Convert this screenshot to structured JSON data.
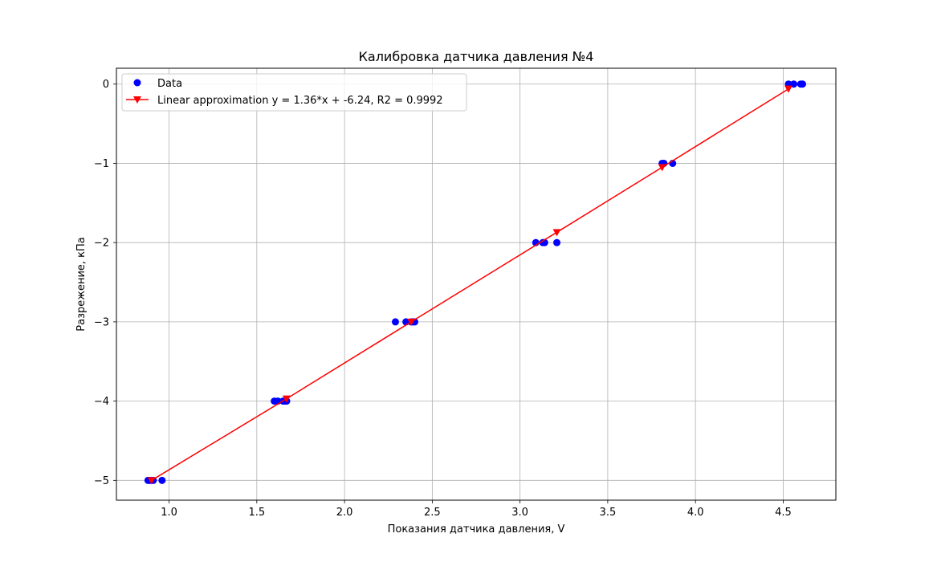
{
  "chart_data": {
    "type": "scatter",
    "title": "Калибровка датчика давления №4",
    "xlabel": "Показания датчика давления, V",
    "ylabel": "Разрежение, кПа",
    "xlim": [
      0.7,
      4.8
    ],
    "ylim": [
      -5.25,
      0.2
    ],
    "xticks": [
      1.0,
      1.5,
      2.0,
      2.5,
      3.0,
      3.5,
      4.0,
      4.5
    ],
    "xtick_labels": [
      "1.0",
      "1.5",
      "2.0",
      "2.5",
      "3.0",
      "3.5",
      "4.0",
      "4.5"
    ],
    "yticks": [
      0,
      -1,
      -2,
      -3,
      -4,
      -5
    ],
    "ytick_labels": [
      "0",
      "−1",
      "−2",
      "−3",
      "−4",
      "−5"
    ],
    "grid": true,
    "legend_position": "upper-left",
    "series": [
      {
        "name": "Data",
        "kind": "scatter",
        "marker": "circle",
        "color": "#0000ff",
        "x": [
          0.88,
          0.89,
          0.9,
          0.91,
          0.96,
          1.6,
          1.62,
          1.65,
          1.66,
          1.67,
          2.29,
          2.35,
          2.38,
          2.39,
          2.4,
          3.09,
          3.13,
          3.14,
          3.21,
          3.81,
          3.82,
          3.87,
          4.53,
          4.56,
          4.6,
          4.61
        ],
        "y": [
          -5,
          -5,
          -5,
          -5,
          -5,
          -4,
          -4,
          -4,
          -4,
          -4,
          -3,
          -3,
          -3,
          -3,
          -3,
          -2,
          -2,
          -2,
          -2,
          -1,
          -1,
          -1,
          0,
          0,
          0,
          0
        ]
      },
      {
        "name": "Linear approximation y = 1.36*x + -6.24, R2 = 0.9992",
        "kind": "line",
        "marker": "triangle-down",
        "color": "#ff0000",
        "x": [
          0.9,
          1.67,
          2.38,
          3.21,
          3.81,
          4.53
        ],
        "y": [
          -5.0,
          -3.97,
          -3.0,
          -1.87,
          -1.05,
          -0.06
        ]
      }
    ]
  }
}
